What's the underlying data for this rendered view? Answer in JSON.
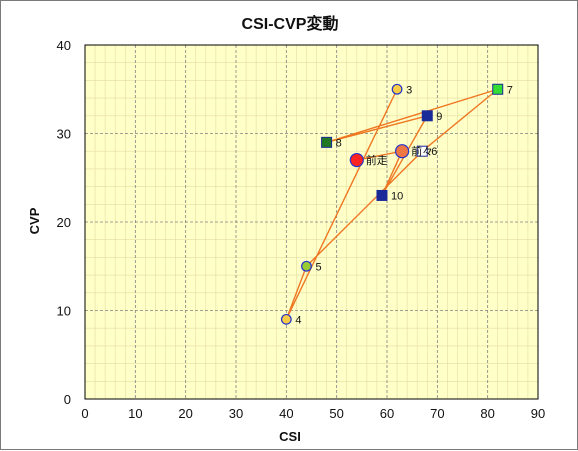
{
  "chart_data": {
    "type": "scatter",
    "title": "CSI-CVP変動",
    "xlabel": "CSI",
    "ylabel": "CVP",
    "xlim": [
      0,
      90
    ],
    "ylim": [
      0,
      40
    ],
    "x_ticks": [
      0,
      10,
      20,
      30,
      40,
      50,
      60,
      70,
      80,
      90
    ],
    "y_ticks": [
      0,
      10,
      20,
      30,
      40
    ],
    "grid": true,
    "colors": {
      "plot_bg": "#ffffc8",
      "grid": "#808080",
      "line": "#ee7722",
      "circle_yellow": "#f8cc44",
      "circle_green": "#99cc33",
      "circle_orange": "#ee7744",
      "circle_red": "#ff2222",
      "circle_edge": "#2233cc",
      "square_navy": "#1a2a99",
      "square_green": "#33dd33",
      "square_darkgreen": "#227722",
      "square_white": "#ffffff"
    },
    "points": [
      {
        "label": "3",
        "x": 62,
        "y": 35,
        "marker": "circle",
        "fill": "circle_yellow"
      },
      {
        "label": "4",
        "x": 40,
        "y": 9,
        "marker": "circle",
        "fill": "circle_yellow"
      },
      {
        "label": "5",
        "x": 44,
        "y": 15,
        "marker": "circle",
        "fill": "circle_green"
      },
      {
        "label": "6",
        "x": 67,
        "y": 28,
        "marker": "square",
        "fill": "square_white"
      },
      {
        "label": "7",
        "x": 82,
        "y": 35,
        "marker": "square",
        "fill": "square_green"
      },
      {
        "label": "8",
        "x": 48,
        "y": 29,
        "marker": "square",
        "fill": "square_darkgreen"
      },
      {
        "label": "9",
        "x": 68,
        "y": 32,
        "marker": "square",
        "fill": "square_navy"
      },
      {
        "label": "10",
        "x": 59,
        "y": 23,
        "marker": "square",
        "fill": "square_navy"
      },
      {
        "label": "前々",
        "x": 63,
        "y": 28,
        "marker": "circle-large",
        "fill": "circle_orange"
      },
      {
        "label": "前走",
        "x": 54,
        "y": 27,
        "marker": "circle-large",
        "fill": "circle_red"
      }
    ],
    "path_order": [
      "3",
      "4",
      "5",
      "6",
      "7",
      "8",
      "9",
      "10",
      "前々",
      "前走"
    ]
  }
}
